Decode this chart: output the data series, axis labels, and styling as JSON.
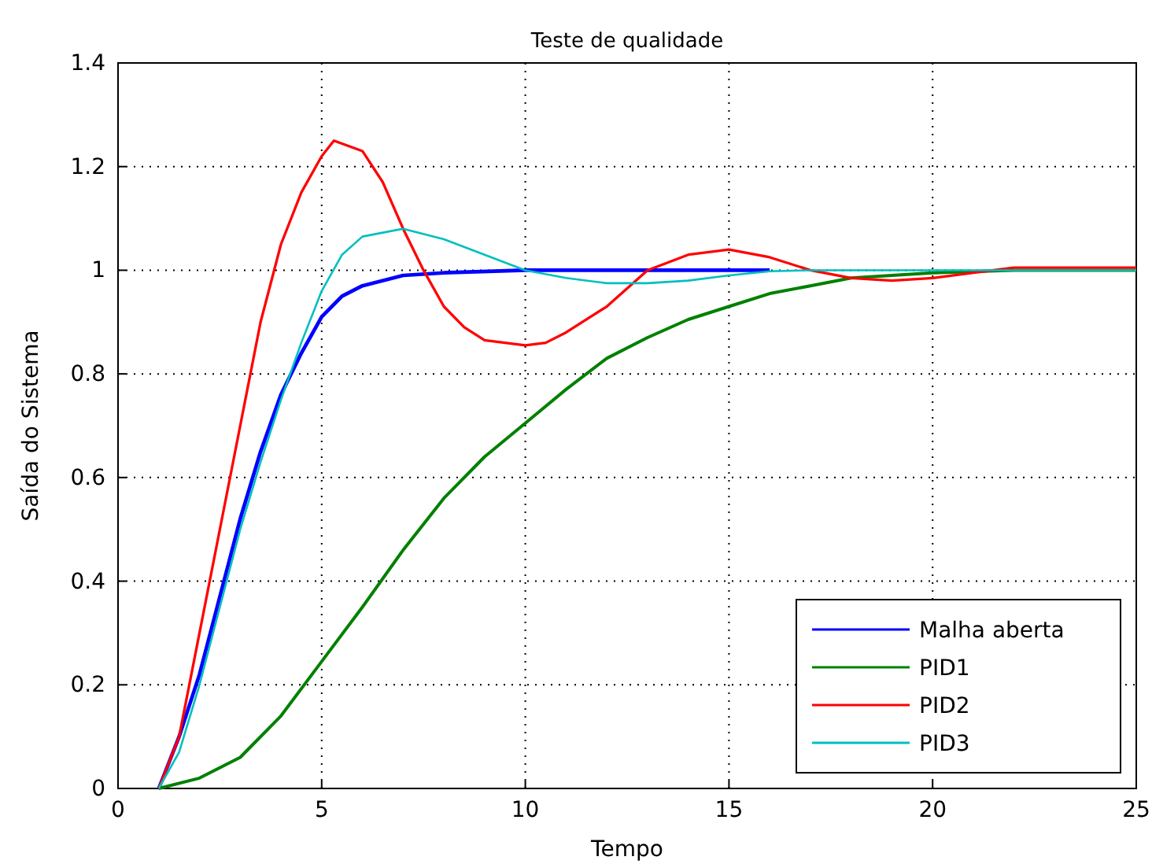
{
  "chart_data": {
    "type": "line",
    "title": "Teste de qualidade",
    "xlabel": "Tempo",
    "ylabel": "Saída do Sistema",
    "xlim": [
      0,
      25
    ],
    "xticks": [
      0,
      5,
      10,
      15,
      20,
      25
    ],
    "ylim": [
      0,
      1.4
    ],
    "yticks": [
      0,
      0.2,
      0.4,
      0.6,
      0.8,
      1,
      1.2,
      1.4
    ],
    "grid": true,
    "legend": "bottom right",
    "line_style": "solid",
    "series": [
      {
        "name": "Malha aberta",
        "color": "#0000ff",
        "x": [
          1,
          1.5,
          2,
          2.5,
          3,
          3.5,
          4,
          4.5,
          5,
          5.5,
          6,
          7,
          8,
          10,
          16
        ],
        "values": [
          0,
          0.1,
          0.22,
          0.37,
          0.52,
          0.65,
          0.76,
          0.84,
          0.91,
          0.95,
          0.97,
          0.99,
          0.995,
          1,
          1
        ]
      },
      {
        "name": "PID1",
        "color": "#008000",
        "x": [
          1,
          2,
          3,
          4,
          5,
          6,
          7,
          8,
          9,
          10,
          11,
          12,
          13,
          14,
          15,
          16,
          17,
          18,
          19,
          20,
          22,
          25
        ],
        "values": [
          0,
          0.02,
          0.06,
          0.14,
          0.245,
          0.35,
          0.46,
          0.56,
          0.64,
          0.705,
          0.77,
          0.83,
          0.87,
          0.905,
          0.93,
          0.955,
          0.97,
          0.985,
          0.99,
          0.995,
          1,
          1
        ]
      },
      {
        "name": "PID2",
        "color": "#ff0000",
        "x": [
          1,
          1.5,
          2,
          2.5,
          3,
          3.5,
          4,
          4.5,
          5,
          5.3,
          6,
          6.5,
          7,
          7.5,
          8,
          8.5,
          9,
          10,
          10.5,
          11,
          12,
          13,
          14,
          15,
          16,
          17,
          18,
          19,
          20,
          21,
          22,
          25
        ],
        "values": [
          0,
          0.1,
          0.3,
          0.5,
          0.7,
          0.9,
          1.05,
          1.15,
          1.22,
          1.25,
          1.23,
          1.17,
          1.08,
          1,
          0.93,
          0.89,
          0.865,
          0.855,
          0.86,
          0.88,
          0.93,
          1,
          1.03,
          1.04,
          1.025,
          1,
          0.985,
          0.98,
          0.985,
          0.995,
          1.005,
          1.005
        ]
      },
      {
        "name": "PID3",
        "color": "#00bfbf",
        "x": [
          1,
          1.5,
          2,
          2.5,
          3,
          3.5,
          4,
          4.5,
          5,
          5.5,
          6,
          7,
          8,
          9,
          10,
          11,
          12,
          13,
          14,
          15,
          16,
          17,
          25
        ],
        "values": [
          0,
          0.07,
          0.2,
          0.35,
          0.5,
          0.63,
          0.75,
          0.86,
          0.96,
          1.03,
          1.065,
          1.08,
          1.06,
          1.03,
          1,
          0.985,
          0.975,
          0.975,
          0.98,
          0.99,
          0.998,
          1,
          1
        ]
      }
    ]
  }
}
